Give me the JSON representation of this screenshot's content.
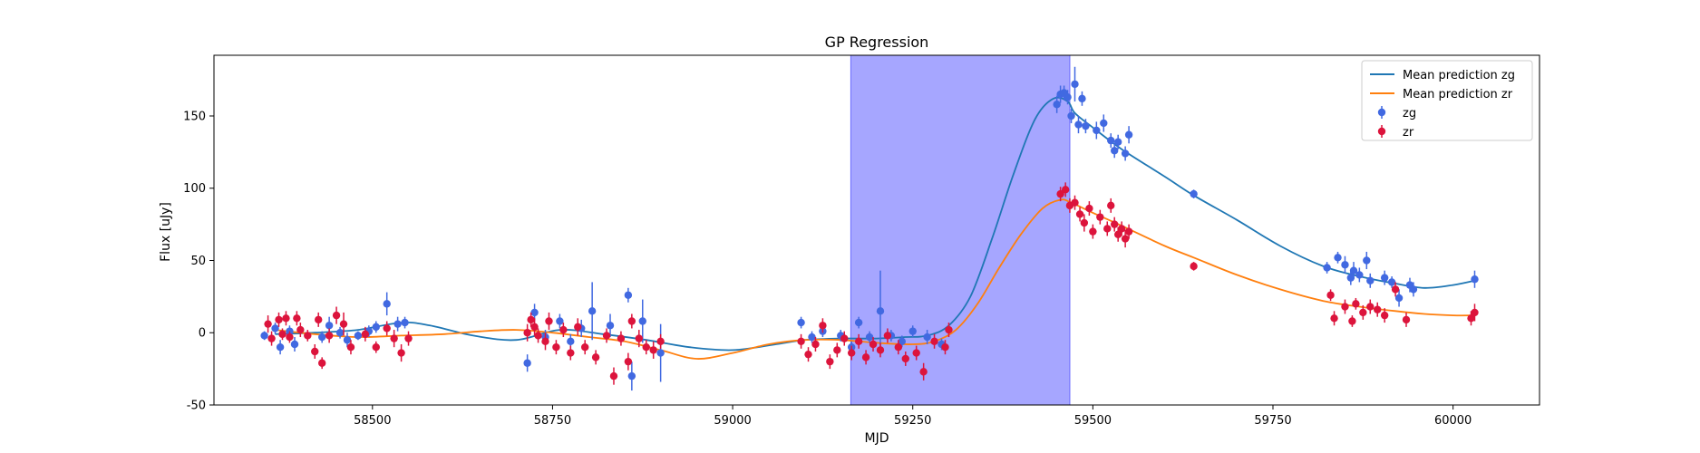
{
  "chart_data": {
    "type": "scatter",
    "title": "GP Regression",
    "xlabel": "MJD",
    "ylabel": "Flux [uJy]",
    "xlim": [
      58280,
      60120
    ],
    "ylim": [
      -50,
      192
    ],
    "xticks": [
      58500,
      58750,
      59000,
      59250,
      59500,
      59750,
      60000
    ],
    "yticks": [
      -50,
      0,
      50,
      100,
      150
    ],
    "grid": false,
    "legend_position": "top-right",
    "highlight_span": {
      "x0": 59164,
      "x1": 59468,
      "color": "#a6a6ff"
    },
    "series": [
      {
        "name": "Mean prediction zg",
        "kind": "line",
        "color": "#1f77b4",
        "x": [
          58365,
          58420,
          58480,
          58540,
          58580,
          58640,
          58700,
          58760,
          58820,
          58880,
          58940,
          59000,
          59060,
          59100,
          59150,
          59200,
          59240,
          59270,
          59300,
          59330,
          59360,
          59390,
          59420,
          59445,
          59465,
          59475,
          59500,
          59540,
          59600,
          59640,
          59700,
          59760,
          59820,
          59870,
          59920,
          59960,
          60000,
          60030
        ],
        "y": [
          -1,
          0,
          2,
          7,
          5,
          -2,
          -5,
          2,
          -1,
          -5,
          -10,
          -12,
          -8,
          -5,
          -4,
          -4,
          -3,
          -2,
          5,
          25,
          65,
          110,
          148,
          162,
          160,
          152,
          142,
          127,
          108,
          95,
          78,
          60,
          46,
          39,
          34,
          31,
          33,
          36
        ]
      },
      {
        "name": "Mean prediction zr",
        "kind": "line",
        "color": "#ff7f0e",
        "x": [
          58365,
          58420,
          58480,
          58540,
          58600,
          58650,
          58700,
          58750,
          58800,
          58850,
          58900,
          58950,
          59000,
          59050,
          59100,
          59150,
          59200,
          59250,
          59280,
          59310,
          59340,
          59370,
          59400,
          59430,
          59455,
          59470,
          59500,
          59540,
          59600,
          59640,
          59700,
          59760,
          59820,
          59870,
          59920,
          59960,
          60000,
          60030
        ],
        "y": [
          2,
          -1,
          -3,
          -2,
          -1,
          1,
          2,
          0,
          -3,
          -6,
          -12,
          -18,
          -14,
          -8,
          -5,
          -5,
          -7,
          -8,
          -6,
          2,
          20,
          45,
          68,
          86,
          92,
          90,
          83,
          74,
          60,
          52,
          40,
          30,
          22,
          18,
          15,
          13,
          12,
          12
        ]
      },
      {
        "name": "zg",
        "kind": "errorbar",
        "color": "#4169e1",
        "points": [
          [
            58350,
            -2,
            3
          ],
          [
            58365,
            3,
            4
          ],
          [
            58372,
            -10,
            5
          ],
          [
            58385,
            1,
            4
          ],
          [
            58392,
            -8,
            5
          ],
          [
            58430,
            -3,
            4
          ],
          [
            58440,
            5,
            6
          ],
          [
            58455,
            0,
            4
          ],
          [
            58465,
            -5,
            5
          ],
          [
            58480,
            -2,
            3
          ],
          [
            58495,
            1,
            4
          ],
          [
            58505,
            4,
            4
          ],
          [
            58520,
            20,
            8
          ],
          [
            58535,
            6,
            5
          ],
          [
            58545,
            7,
            4
          ],
          [
            58715,
            -21,
            6
          ],
          [
            58725,
            14,
            6
          ],
          [
            58740,
            -3,
            5
          ],
          [
            58760,
            8,
            5
          ],
          [
            58775,
            -6,
            5
          ],
          [
            58790,
            3,
            6
          ],
          [
            58805,
            15,
            20
          ],
          [
            58830,
            5,
            8
          ],
          [
            58855,
            26,
            5
          ],
          [
            58860,
            -30,
            10
          ],
          [
            58875,
            8,
            15
          ],
          [
            58900,
            -14,
            20
          ],
          [
            59095,
            7,
            4
          ],
          [
            59110,
            -3,
            4
          ],
          [
            59125,
            1,
            4
          ],
          [
            59150,
            -2,
            4
          ],
          [
            59165,
            -10,
            4
          ],
          [
            59175,
            7,
            4
          ],
          [
            59190,
            -3,
            4
          ],
          [
            59205,
            15,
            28
          ],
          [
            59220,
            -2,
            4
          ],
          [
            59235,
            -6,
            4
          ],
          [
            59250,
            1,
            4
          ],
          [
            59270,
            -3,
            5
          ],
          [
            59290,
            -8,
            4
          ],
          [
            59450,
            158,
            6
          ],
          [
            59455,
            165,
            6
          ],
          [
            59460,
            166,
            5
          ],
          [
            59465,
            163,
            5
          ],
          [
            59470,
            150,
            5
          ],
          [
            59475,
            172,
            12
          ],
          [
            59480,
            144,
            6
          ],
          [
            59485,
            162,
            5
          ],
          [
            59490,
            143,
            5
          ],
          [
            59505,
            140,
            6
          ],
          [
            59515,
            145,
            6
          ],
          [
            59525,
            133,
            5
          ],
          [
            59530,
            126,
            5
          ],
          [
            59535,
            132,
            5
          ],
          [
            59545,
            124,
            5
          ],
          [
            59550,
            137,
            6
          ],
          [
            59640,
            96,
            3
          ],
          [
            59825,
            45,
            4
          ],
          [
            59840,
            52,
            4
          ],
          [
            59850,
            47,
            6
          ],
          [
            59858,
            38,
            5
          ],
          [
            59862,
            43,
            6
          ],
          [
            59870,
            40,
            5
          ],
          [
            59880,
            50,
            6
          ],
          [
            59885,
            36,
            5
          ],
          [
            59905,
            38,
            5
          ],
          [
            59915,
            35,
            4
          ],
          [
            59925,
            24,
            6
          ],
          [
            59940,
            33,
            5
          ],
          [
            59945,
            30,
            5
          ],
          [
            60030,
            37,
            6
          ]
        ]
      },
      {
        "name": "zr",
        "kind": "errorbar",
        "color": "#dc143c",
        "points": [
          [
            58355,
            6,
            6
          ],
          [
            58360,
            -4,
            5
          ],
          [
            58370,
            9,
            5
          ],
          [
            58375,
            -1,
            4
          ],
          [
            58380,
            10,
            5
          ],
          [
            58385,
            -3,
            4
          ],
          [
            58395,
            10,
            5
          ],
          [
            58400,
            2,
            5
          ],
          [
            58410,
            -2,
            4
          ],
          [
            58420,
            -13,
            5
          ],
          [
            58425,
            9,
            5
          ],
          [
            58430,
            -21,
            4
          ],
          [
            58440,
            -2,
            5
          ],
          [
            58450,
            12,
            6
          ],
          [
            58460,
            6,
            8
          ],
          [
            58470,
            -10,
            5
          ],
          [
            58490,
            -1,
            5
          ],
          [
            58505,
            -10,
            4
          ],
          [
            58520,
            3,
            5
          ],
          [
            58530,
            -4,
            6
          ],
          [
            58540,
            -14,
            6
          ],
          [
            58550,
            -4,
            5
          ],
          [
            58715,
            0,
            6
          ],
          [
            58720,
            9,
            5
          ],
          [
            58725,
            4,
            6
          ],
          [
            58730,
            -2,
            5
          ],
          [
            58740,
            -6,
            6
          ],
          [
            58745,
            8,
            6
          ],
          [
            58755,
            -10,
            5
          ],
          [
            58765,
            2,
            5
          ],
          [
            58775,
            -14,
            5
          ],
          [
            58785,
            4,
            6
          ],
          [
            58795,
            -10,
            5
          ],
          [
            58810,
            -17,
            5
          ],
          [
            58825,
            -2,
            5
          ],
          [
            58835,
            -30,
            6
          ],
          [
            58845,
            -4,
            5
          ],
          [
            58855,
            -20,
            6
          ],
          [
            58860,
            8,
            5
          ],
          [
            58870,
            -4,
            6
          ],
          [
            58880,
            -10,
            5
          ],
          [
            58890,
            -12,
            6
          ],
          [
            58900,
            -6,
            5
          ],
          [
            59095,
            -6,
            5
          ],
          [
            59105,
            -15,
            5
          ],
          [
            59115,
            -8,
            5
          ],
          [
            59125,
            5,
            5
          ],
          [
            59135,
            -20,
            5
          ],
          [
            59145,
            -12,
            5
          ],
          [
            59155,
            -4,
            5
          ],
          [
            59165,
            -14,
            5
          ],
          [
            59175,
            -6,
            5
          ],
          [
            59185,
            -17,
            5
          ],
          [
            59195,
            -8,
            5
          ],
          [
            59205,
            -12,
            5
          ],
          [
            59215,
            -2,
            5
          ],
          [
            59230,
            -10,
            5
          ],
          [
            59240,
            -18,
            5
          ],
          [
            59255,
            -14,
            5
          ],
          [
            59265,
            -27,
            6
          ],
          [
            59280,
            -6,
            5
          ],
          [
            59295,
            -10,
            5
          ],
          [
            59300,
            2,
            5
          ],
          [
            59455,
            96,
            5
          ],
          [
            59462,
            99,
            5
          ],
          [
            59468,
            88,
            5
          ],
          [
            59475,
            90,
            5
          ],
          [
            59482,
            82,
            5
          ],
          [
            59488,
            76,
            6
          ],
          [
            59495,
            86,
            5
          ],
          [
            59500,
            70,
            5
          ],
          [
            59510,
            80,
            5
          ],
          [
            59520,
            72,
            5
          ],
          [
            59525,
            88,
            5
          ],
          [
            59530,
            75,
            5
          ],
          [
            59535,
            68,
            5
          ],
          [
            59540,
            72,
            5
          ],
          [
            59545,
            65,
            6
          ],
          [
            59550,
            70,
            5
          ],
          [
            59640,
            46,
            3
          ],
          [
            59830,
            26,
            4
          ],
          [
            59835,
            10,
            5
          ],
          [
            59850,
            18,
            5
          ],
          [
            59860,
            8,
            4
          ],
          [
            59865,
            20,
            4
          ],
          [
            59875,
            14,
            5
          ],
          [
            59885,
            18,
            5
          ],
          [
            59895,
            16,
            5
          ],
          [
            59905,
            12,
            5
          ],
          [
            59920,
            30,
            5
          ],
          [
            59935,
            9,
            5
          ],
          [
            60025,
            10,
            5
          ],
          [
            60030,
            14,
            6
          ]
        ]
      }
    ]
  }
}
